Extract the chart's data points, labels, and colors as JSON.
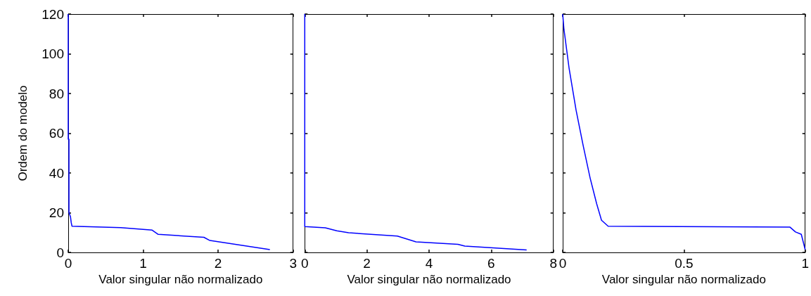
{
  "chart_data": [
    {
      "type": "line",
      "xlabel": "Valor singular não normalizado",
      "ylabel": "Ordem do modelo",
      "xlim": [
        0,
        3
      ],
      "xticks": [
        0,
        1,
        2,
        3
      ],
      "ylim": [
        0,
        120
      ],
      "yticks": [
        0,
        20,
        40,
        60,
        80,
        100,
        120
      ],
      "series": [
        {
          "color": "#0000ff",
          "x": [
            0,
            0,
            0.01,
            0.01,
            0.03,
            0.04,
            0.05,
            0.7,
            1.12,
            1.2,
            1.81,
            1.89,
            2.69
          ],
          "values": [
            120,
            57,
            57,
            20,
            18,
            15,
            13.2,
            12.5,
            11.2,
            9.1,
            7.6,
            6,
            1.4
          ]
        }
      ]
    },
    {
      "type": "line",
      "xlabel": "Valor singular não normalizado",
      "xlim": [
        0,
        8
      ],
      "xticks": [
        0,
        2,
        4,
        6,
        8
      ],
      "ylim": [
        0,
        120
      ],
      "yticks": [
        0,
        20,
        40,
        60,
        80,
        100,
        120
      ],
      "tick_labels": "x",
      "series": [
        {
          "color": "#0000ff",
          "x": [
            0,
            0,
            0.66,
            1.03,
            1.41,
            2.98,
            3.58,
            4.93,
            5.15,
            7.14
          ],
          "values": [
            120,
            13,
            12.4,
            10.9,
            9.9,
            8.2,
            5.3,
            4.1,
            3.2,
            1.2
          ]
        }
      ]
    },
    {
      "type": "line",
      "xlabel": "Valor singular não normalizado",
      "xlim": [
        0,
        1
      ],
      "xticks": [
        0,
        0.5,
        1
      ],
      "ylim": [
        0,
        120
      ],
      "yticks": [
        0,
        20,
        40,
        60,
        80,
        100,
        120
      ],
      "tick_labels": "x",
      "series": [
        {
          "color": "#0000ff",
          "x": [
            0,
            0.005,
            0.026,
            0.055,
            0.084,
            0.113,
            0.14,
            0.16,
            0.1875,
            0.9375,
            0.96,
            0.984,
            1.0
          ],
          "values": [
            120,
            112.5,
            93,
            71.7,
            54,
            37.5,
            24.5,
            16.2,
            13.2,
            12.7,
            10.3,
            9.1,
            1.4
          ]
        }
      ]
    }
  ]
}
